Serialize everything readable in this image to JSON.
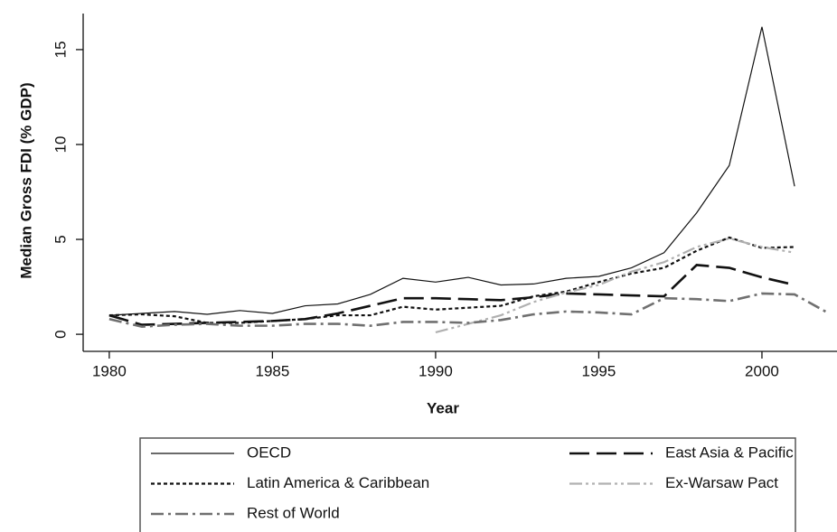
{
  "chart_data": {
    "type": "line",
    "y_label": "Median Gross FDI (% GDP)",
    "x_label": "Year",
    "x": [
      1980,
      1981,
      1982,
      1983,
      1984,
      1985,
      1986,
      1987,
      1988,
      1989,
      1990,
      1991,
      1992,
      1993,
      1994,
      1995,
      1996,
      1997,
      1998,
      1999,
      2000,
      2001,
      2002
    ],
    "xlim": [
      1979.2,
      2002.3
    ],
    "xticks": [
      1980,
      1985,
      1990,
      1995,
      2000
    ],
    "ylim": [
      -0.9,
      16.9
    ],
    "yticks": [
      0,
      5,
      10,
      15
    ],
    "series": [
      {
        "name": "OECD",
        "color": "#111111",
        "style": "solid",
        "width": 1.2,
        "values": [
          1.0,
          1.1,
          1.2,
          1.05,
          1.25,
          1.1,
          1.5,
          1.6,
          2.1,
          2.95,
          2.75,
          3.0,
          2.6,
          2.65,
          2.95,
          3.05,
          3.5,
          4.3,
          6.4,
          8.9,
          16.2,
          7.8,
          null
        ]
      },
      {
        "name": "East Asia & Pacific",
        "color": "#111111",
        "style": "longdash",
        "width": 2.6,
        "values": [
          1.0,
          0.5,
          0.55,
          0.6,
          0.65,
          0.7,
          0.8,
          1.1,
          1.5,
          1.9,
          1.9,
          1.85,
          1.8,
          1.95,
          2.15,
          2.1,
          2.05,
          2.0,
          3.65,
          3.5,
          3.0,
          2.6,
          null
        ]
      },
      {
        "name": "Latin America & Caribbean",
        "color": "#111111",
        "style": "dotted",
        "width": 2.2,
        "values": [
          1.0,
          1.05,
          0.95,
          0.6,
          0.6,
          0.7,
          0.8,
          1.0,
          1.0,
          1.45,
          1.3,
          1.4,
          1.5,
          2.0,
          2.25,
          2.75,
          3.2,
          3.5,
          4.4,
          5.1,
          4.55,
          4.6,
          null
        ]
      },
      {
        "name": "Ex-Warsaw Pact",
        "color": "#b0b0b0",
        "style": "dashdotdot",
        "width": 2.2,
        "values": [
          null,
          null,
          null,
          null,
          null,
          null,
          null,
          null,
          null,
          null,
          0.1,
          0.55,
          1.0,
          1.7,
          2.2,
          2.6,
          3.3,
          3.8,
          4.6,
          5.05,
          4.6,
          4.3,
          null
        ]
      },
      {
        "name": "Rest of World",
        "color": "#707070",
        "style": "dashdot",
        "width": 2.6,
        "values": [
          0.8,
          0.4,
          0.5,
          0.55,
          0.45,
          0.45,
          0.55,
          0.55,
          0.45,
          0.65,
          0.65,
          0.6,
          0.75,
          1.05,
          1.2,
          1.15,
          1.05,
          1.9,
          1.85,
          1.75,
          2.15,
          2.1,
          1.15
        ]
      }
    ]
  }
}
